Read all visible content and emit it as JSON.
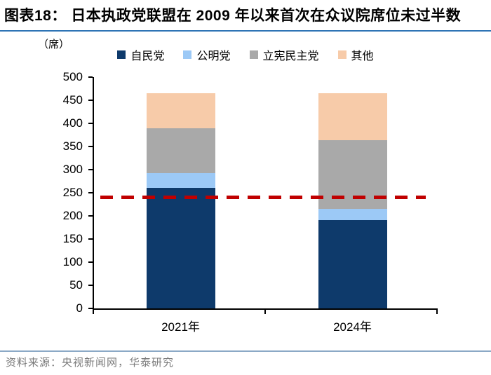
{
  "header": {
    "title": "图表18：  日本执政党联盟在 2009 年以来首次在众议院席位未过半数",
    "underline_color": "#2e74b5"
  },
  "chart_data": {
    "type": "bar",
    "stacked": true,
    "unit_label": "（席）",
    "categories": [
      "2021年",
      "2024年"
    ],
    "series": [
      {
        "name": "自民党",
        "color": "#0e3a6b",
        "values": [
          261,
          191
        ]
      },
      {
        "name": "公明党",
        "color": "#9cc9f6",
        "values": [
          32,
          24
        ]
      },
      {
        "name": "立宪民主党",
        "color": "#a9a9a9",
        "values": [
          96,
          148
        ]
      },
      {
        "name": "其他",
        "color": "#f7cba9",
        "values": [
          76,
          102
        ]
      }
    ],
    "totals": [
      465,
      465
    ],
    "ylim": [
      0,
      500
    ],
    "yticks": [
      0,
      50,
      100,
      150,
      200,
      250,
      300,
      350,
      400,
      450,
      500
    ],
    "majority_line": {
      "value": 240,
      "color": "#c00000",
      "style": "dashed"
    },
    "legend_position": "top",
    "grid": false,
    "axis_color": "#000000"
  },
  "source": {
    "text": "资料来源：央视新闻网，华泰研究",
    "rule_color": "#8ba9c6"
  }
}
